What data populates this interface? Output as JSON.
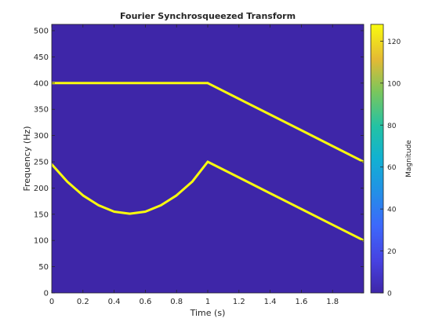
{
  "chart_data": {
    "type": "heatmap",
    "title": "Fourier Synchrosqueezed Transform",
    "xlabel": "Time (s)",
    "ylabel": "Frequency (Hz)",
    "xlim": [
      0,
      2
    ],
    "ylim": [
      0,
      512
    ],
    "xticks": [
      0,
      0.2,
      0.4,
      0.6,
      0.8,
      1,
      1.2,
      1.4,
      1.6,
      1.8
    ],
    "xtick_labels": [
      "0",
      "0.2",
      "0.4",
      "0.6",
      "0.8",
      "1",
      "1.2",
      "1.4",
      "1.6",
      "1.8"
    ],
    "yticks": [
      0,
      50,
      100,
      150,
      200,
      250,
      300,
      350,
      400,
      450,
      500
    ],
    "ytick_labels": [
      "0",
      "50",
      "100",
      "150",
      "200",
      "250",
      "300",
      "350",
      "400",
      "450",
      "500"
    ],
    "colorbar": {
      "label": "Magnitude",
      "range": [
        0,
        128
      ],
      "ticks": [
        0,
        20,
        40,
        60,
        80,
        100,
        120
      ],
      "tick_labels": [
        "0",
        "20",
        "40",
        "60",
        "80",
        "100",
        "120"
      ]
    },
    "background_color": "#3e26a8",
    "ridge_color": "#f9fb0e",
    "ridges": [
      {
        "x": [
          0,
          0.1,
          0.2,
          0.3,
          0.4,
          0.5,
          0.6,
          0.7,
          0.8,
          0.9,
          1.0
        ],
        "y": [
          400,
          400,
          400,
          400,
          400,
          400,
          400,
          400,
          400,
          400,
          400
        ],
        "magnitude": 128
      },
      {
        "x": [
          1.0,
          1.2,
          1.4,
          1.6,
          1.8,
          2.0
        ],
        "y": [
          400,
          370,
          340,
          310,
          280,
          250
        ],
        "magnitude": 128
      },
      {
        "x": [
          0,
          0.1,
          0.2,
          0.3,
          0.4,
          0.5,
          0.6,
          0.7,
          0.8,
          0.9,
          1.0
        ],
        "y": [
          245,
          212,
          186,
          167,
          155,
          151,
          155,
          167,
          186,
          212,
          250
        ],
        "magnitude": 128
      },
      {
        "x": [
          1.0,
          1.2,
          1.4,
          1.6,
          1.8,
          2.0
        ],
        "y": [
          250,
          220,
          190,
          160,
          130,
          100
        ],
        "magnitude": 128
      }
    ],
    "grid": false
  }
}
